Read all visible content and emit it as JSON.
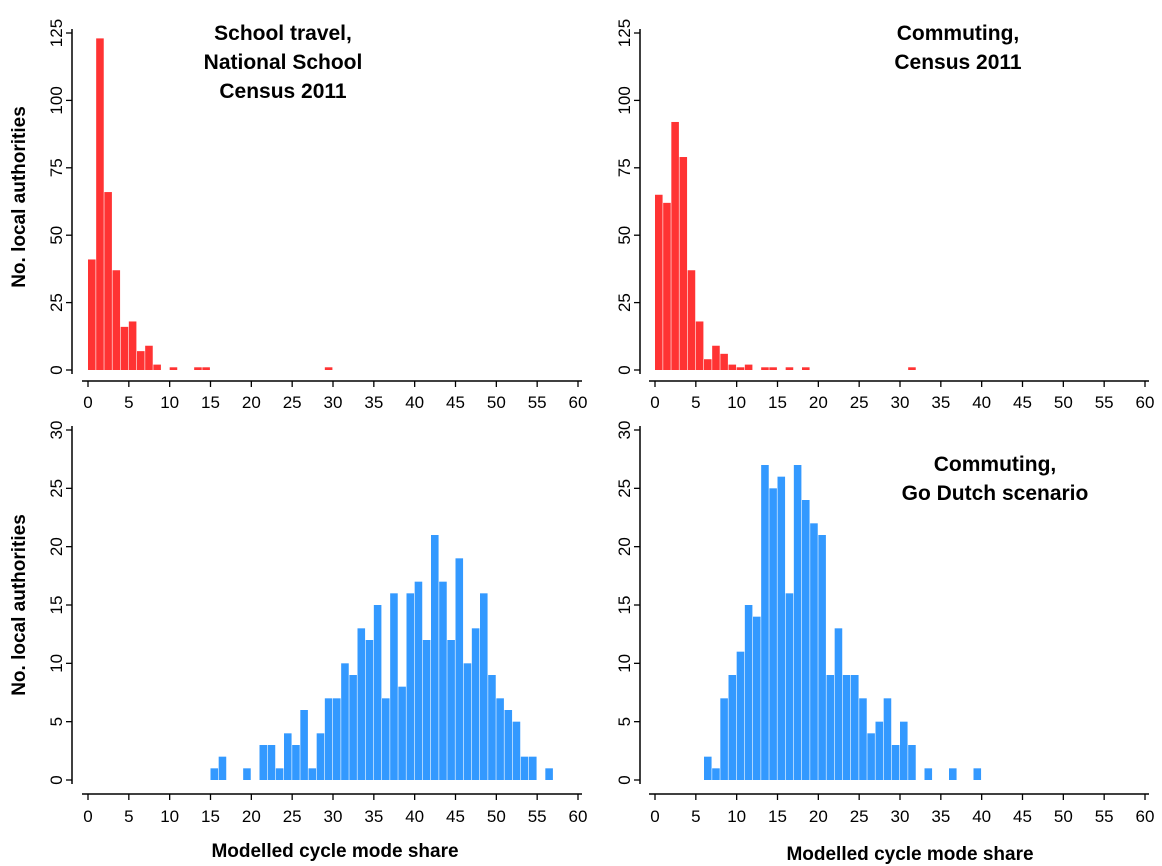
{
  "figure": {
    "ylabel": "No. local authorities",
    "xlabel": "Modelled cycle mode share",
    "x_ticks": [
      0,
      5,
      10,
      15,
      20,
      25,
      30,
      35,
      40,
      45,
      50,
      55,
      60
    ]
  },
  "chart_data": [
    {
      "type": "bar",
      "title_lines": [
        "School travel,",
        "National School",
        "Census 2011"
      ],
      "ylabel": "No. local authorities",
      "xlabel": "",
      "xlim": [
        0,
        60
      ],
      "ylim": [
        0,
        125
      ],
      "y_ticks": [
        0,
        25,
        50,
        75,
        100,
        125
      ],
      "bin_width": 1,
      "color": "#ff3333",
      "grid": false,
      "bins": [
        {
          "x": 0,
          "count": 41
        },
        {
          "x": 1,
          "count": 123
        },
        {
          "x": 2,
          "count": 66
        },
        {
          "x": 3,
          "count": 37
        },
        {
          "x": 4,
          "count": 16
        },
        {
          "x": 5,
          "count": 18
        },
        {
          "x": 6,
          "count": 7
        },
        {
          "x": 7,
          "count": 9
        },
        {
          "x": 8,
          "count": 2
        },
        {
          "x": 10,
          "count": 1
        },
        {
          "x": 13,
          "count": 1
        },
        {
          "x": 14,
          "count": 1
        },
        {
          "x": 29,
          "count": 1
        }
      ]
    },
    {
      "type": "bar",
      "title_lines": [
        "Commuting,",
        "Census 2011"
      ],
      "ylabel": "",
      "xlabel": "",
      "xlim": [
        0,
        60
      ],
      "ylim": [
        0,
        125
      ],
      "y_ticks": [
        0,
        25,
        50,
        75,
        100,
        125
      ],
      "bin_width": 1,
      "color": "#ff3333",
      "grid": false,
      "bins": [
        {
          "x": 0,
          "count": 65
        },
        {
          "x": 1,
          "count": 62
        },
        {
          "x": 2,
          "count": 92
        },
        {
          "x": 3,
          "count": 79
        },
        {
          "x": 4,
          "count": 37
        },
        {
          "x": 5,
          "count": 18
        },
        {
          "x": 6,
          "count": 4
        },
        {
          "x": 7,
          "count": 9
        },
        {
          "x": 8,
          "count": 6
        },
        {
          "x": 9,
          "count": 2
        },
        {
          "x": 10,
          "count": 1
        },
        {
          "x": 11,
          "count": 2
        },
        {
          "x": 13,
          "count": 1
        },
        {
          "x": 14,
          "count": 1
        },
        {
          "x": 16,
          "count": 1
        },
        {
          "x": 18,
          "count": 1
        },
        {
          "x": 31,
          "count": 1
        }
      ]
    },
    {
      "type": "bar",
      "title_lines": [],
      "ylabel": "No. local authorities",
      "xlabel": "Modelled cycle mode share",
      "xlim": [
        0,
        60
      ],
      "ylim": [
        0,
        30
      ],
      "y_ticks": [
        0,
        5,
        10,
        15,
        20,
        25,
        30
      ],
      "bin_width": 1,
      "color": "#3399ff",
      "grid": false,
      "bins": [
        {
          "x": 15,
          "count": 1
        },
        {
          "x": 16,
          "count": 2
        },
        {
          "x": 19,
          "count": 1
        },
        {
          "x": 21,
          "count": 3
        },
        {
          "x": 22,
          "count": 3
        },
        {
          "x": 23,
          "count": 1
        },
        {
          "x": 24,
          "count": 4
        },
        {
          "x": 25,
          "count": 3
        },
        {
          "x": 26,
          "count": 6
        },
        {
          "x": 27,
          "count": 1
        },
        {
          "x": 28,
          "count": 4
        },
        {
          "x": 29,
          "count": 7
        },
        {
          "x": 30,
          "count": 7
        },
        {
          "x": 31,
          "count": 10
        },
        {
          "x": 32,
          "count": 9
        },
        {
          "x": 33,
          "count": 13
        },
        {
          "x": 34,
          "count": 12
        },
        {
          "x": 35,
          "count": 15
        },
        {
          "x": 36,
          "count": 7
        },
        {
          "x": 37,
          "count": 16
        },
        {
          "x": 38,
          "count": 8
        },
        {
          "x": 39,
          "count": 16
        },
        {
          "x": 40,
          "count": 17
        },
        {
          "x": 41,
          "count": 12
        },
        {
          "x": 42,
          "count": 21
        },
        {
          "x": 43,
          "count": 17
        },
        {
          "x": 44,
          "count": 12
        },
        {
          "x": 45,
          "count": 19
        },
        {
          "x": 46,
          "count": 10
        },
        {
          "x": 47,
          "count": 13
        },
        {
          "x": 48,
          "count": 16
        },
        {
          "x": 49,
          "count": 9
        },
        {
          "x": 50,
          "count": 7
        },
        {
          "x": 51,
          "count": 6
        },
        {
          "x": 52,
          "count": 5
        },
        {
          "x": 53,
          "count": 2
        },
        {
          "x": 54,
          "count": 2
        },
        {
          "x": 56,
          "count": 1
        }
      ]
    },
    {
      "type": "bar",
      "title_lines": [
        "Commuting,",
        "Go Dutch scenario"
      ],
      "ylabel": "",
      "xlabel": "Modelled cycle mode share",
      "xlim": [
        0,
        60
      ],
      "ylim": [
        0,
        30
      ],
      "y_ticks": [
        0,
        5,
        10,
        15,
        20,
        25,
        30
      ],
      "bin_width": 1,
      "color": "#3399ff",
      "grid": false,
      "bins": [
        {
          "x": 6,
          "count": 2
        },
        {
          "x": 7,
          "count": 1
        },
        {
          "x": 8,
          "count": 7
        },
        {
          "x": 9,
          "count": 9
        },
        {
          "x": 10,
          "count": 11
        },
        {
          "x": 11,
          "count": 15
        },
        {
          "x": 12,
          "count": 14
        },
        {
          "x": 13,
          "count": 27
        },
        {
          "x": 14,
          "count": 25
        },
        {
          "x": 15,
          "count": 26
        },
        {
          "x": 16,
          "count": 16
        },
        {
          "x": 17,
          "count": 27
        },
        {
          "x": 18,
          "count": 24
        },
        {
          "x": 19,
          "count": 22
        },
        {
          "x": 20,
          "count": 21
        },
        {
          "x": 21,
          "count": 9
        },
        {
          "x": 22,
          "count": 13
        },
        {
          "x": 23,
          "count": 9
        },
        {
          "x": 24,
          "count": 9
        },
        {
          "x": 25,
          "count": 7
        },
        {
          "x": 26,
          "count": 4
        },
        {
          "x": 27,
          "count": 5
        },
        {
          "x": 28,
          "count": 7
        },
        {
          "x": 29,
          "count": 3
        },
        {
          "x": 30,
          "count": 5
        },
        {
          "x": 31,
          "count": 3
        },
        {
          "x": 33,
          "count": 1
        },
        {
          "x": 36,
          "count": 1
        },
        {
          "x": 39,
          "count": 1
        }
      ]
    }
  ]
}
